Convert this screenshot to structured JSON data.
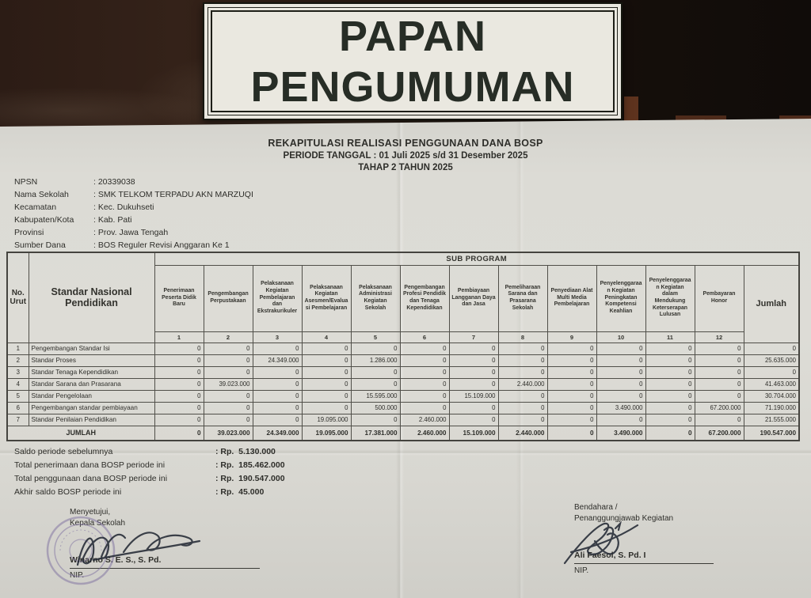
{
  "sign": {
    "line1": "PAPAN",
    "line2": "PENGUMUMAN"
  },
  "document": {
    "title_line1": "REKAPITULASI REALISASI PENGGUNAAN DANA BOSP",
    "title_line2": "PERIODE TANGGAL : 01 Juli 2025 s/d 31 Desember 2025",
    "title_line3": "TAHAP 2 TAHUN 2025"
  },
  "info": {
    "rows": [
      {
        "label": "NPSN",
        "value": ": 20339038"
      },
      {
        "label": "Nama Sekolah",
        "value": ": SMK TELKOM TERPADU AKN MARZUQI"
      },
      {
        "label": "Kecamatan",
        "value": ": Kec. Dukuhseti"
      },
      {
        "label": "Kabupaten/Kota",
        "value": ": Kab. Pati"
      },
      {
        "label": "Provinsi",
        "value": ": Prov. Jawa Tengah"
      },
      {
        "label": "Sumber Dana",
        "value": ": BOS Reguler Revisi Anggaran Ke 1"
      }
    ]
  },
  "table": {
    "sub_program_label": "SUB PROGRAM",
    "col_no_label": "No. Urut",
    "col_name_label": "Standar Nasional Pendidikan",
    "jumlah_label": "Jumlah",
    "program_columns": [
      "Penerimaan Peserta Didik Baru",
      "Pengembangan Perpustakaan",
      "Pelaksanaan Kegiatan Pembelajaran dan Ekstrakurikuler",
      "Pelaksanaan Kegiatan Asesmen/Evaluasi Pembelajaran",
      "Pelaksanaan Administrasi Kegiatan Sekolah",
      "Pengembangan Profesi Pendidik dan Tenaga Kependidikan",
      "Pembiayaan Langganan Daya dan Jasa",
      "Pemeliharaan Sarana dan Prasarana Sekolah",
      "Penyediaan Alat Multi Media Pembelajaran",
      "Penyelenggaraan Kegiatan Peningkatan Kompetensi Keahlian",
      "Penyelenggaraan Kegiatan dalam Mendukung Keterserapan Lulusan",
      "Pembayaran Honor"
    ],
    "column_numbers": [
      "1",
      "2",
      "3",
      "4",
      "5",
      "6",
      "7",
      "8",
      "9",
      "10",
      "11",
      "12"
    ],
    "rows": [
      {
        "no": "1",
        "name": "Pengembangan Standar Isi",
        "values": [
          "0",
          "0",
          "0",
          "0",
          "0",
          "0",
          "0",
          "0",
          "0",
          "0",
          "0",
          "0"
        ],
        "jumlah": "0"
      },
      {
        "no": "2",
        "name": "Standar Proses",
        "values": [
          "0",
          "0",
          "24.349.000",
          "0",
          "1.286.000",
          "0",
          "0",
          "0",
          "0",
          "0",
          "0",
          "0"
        ],
        "jumlah": "25.635.000"
      },
      {
        "no": "3",
        "name": "Standar Tenaga Kependidikan",
        "values": [
          "0",
          "0",
          "0",
          "0",
          "0",
          "0",
          "0",
          "0",
          "0",
          "0",
          "0",
          "0"
        ],
        "jumlah": "0"
      },
      {
        "no": "4",
        "name": "Standar Sarana dan Prasarana",
        "values": [
          "0",
          "39.023.000",
          "0",
          "0",
          "0",
          "0",
          "0",
          "2.440.000",
          "0",
          "0",
          "0",
          "0"
        ],
        "jumlah": "41.463.000"
      },
      {
        "no": "5",
        "name": "Standar Pengelolaan",
        "values": [
          "0",
          "0",
          "0",
          "0",
          "15.595.000",
          "0",
          "15.109.000",
          "0",
          "0",
          "0",
          "0",
          "0"
        ],
        "jumlah": "30.704.000"
      },
      {
        "no": "6",
        "name": "Pengembangan standar pembiayaan",
        "values": [
          "0",
          "0",
          "0",
          "0",
          "500.000",
          "0",
          "0",
          "0",
          "0",
          "3.490.000",
          "0",
          "67.200.000"
        ],
        "jumlah": "71.190.000"
      },
      {
        "no": "7",
        "name": "Standar Penilaian Pendidikan",
        "values": [
          "0",
          "0",
          "0",
          "19.095.000",
          "0",
          "2.460.000",
          "0",
          "0",
          "0",
          "0",
          "0",
          "0"
        ],
        "jumlah": "21.555.000"
      }
    ],
    "totals_label": "JUMLAH",
    "totals": [
      "0",
      "39.023.000",
      "24.349.000",
      "19.095.000",
      "17.381.000",
      "2.460.000",
      "15.109.000",
      "2.440.000",
      "0",
      "3.490.000",
      "0",
      "67.200.000"
    ],
    "totals_jumlah": "190.547.000"
  },
  "summary": {
    "rows": [
      {
        "label": "Saldo periode sebelumnya",
        "value": ": Rp.  5.130.000"
      },
      {
        "label": "Total penerimaan dana BOSP periode ini",
        "value": ": Rp.  185.462.000"
      },
      {
        "label": "Total penggunaan dana BOSP periode ini",
        "value": ": Rp.  190.547.000"
      },
      {
        "label": "Akhir saldo BOSP periode ini",
        "value": ": Rp.  45.000"
      }
    ]
  },
  "signatures": {
    "left": {
      "line1": "Menyetujui,",
      "line2": "Kepala Sekolah",
      "name": "Winarno S. E. S., S. Pd.",
      "nip_label": "NIP."
    },
    "right": {
      "line1": "Bendahara /",
      "line2": "Penanggungjawab Kegiatan",
      "name": "Ali Faesol, S. Pd. I",
      "nip_label": "NIP."
    }
  },
  "colors": {
    "paper": "#dcdbd5",
    "ink": "#2e2e2a",
    "wood_dark": "#2c1c15",
    "sign_bg": "#eae8e0",
    "stamp": "#7d6fa0"
  }
}
